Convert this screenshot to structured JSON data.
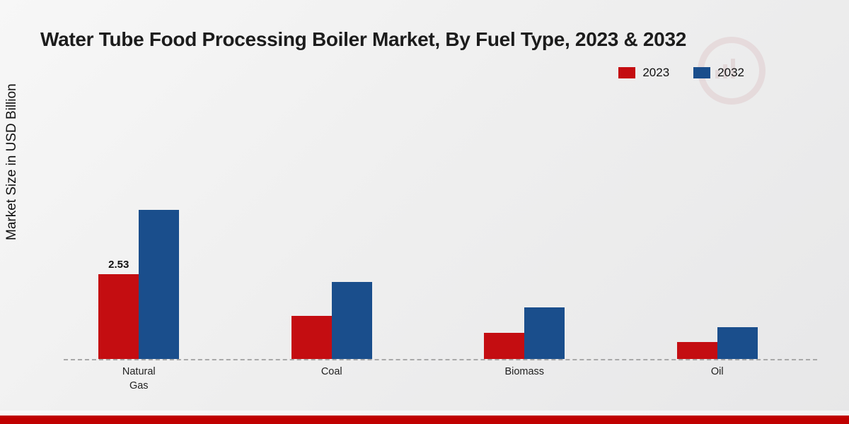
{
  "header": {
    "title": "Water Tube Food Processing Boiler Market, By Fuel Type, 2023 & 2032"
  },
  "axes": {
    "ylabel": "Market Size in USD Billion"
  },
  "legend": {
    "items": [
      {
        "label": "2023",
        "color": "#c40d11"
      },
      {
        "label": "2032",
        "color": "#1a4e8c"
      }
    ]
  },
  "chart_data": {
    "type": "bar",
    "categories": [
      "Natural Gas",
      "Coal",
      "Biomass",
      "Oil"
    ],
    "series": [
      {
        "name": "2023",
        "color": "#c40d11",
        "values": [
          2.53,
          1.28,
          0.78,
          0.5
        ]
      },
      {
        "name": "2032",
        "color": "#1a4e8c",
        "values": [
          4.45,
          2.3,
          1.55,
          0.95
        ]
      }
    ],
    "annotations": [
      {
        "series": 0,
        "category": 0,
        "text": "2.53"
      }
    ],
    "ylim": [
      0,
      5
    ],
    "grid": "off",
    "legend_position": "top-right",
    "baseline_style": "dashed"
  },
  "footer": {
    "bar_color": "#c00000"
  },
  "decor": {
    "watermark": "mrfr-logo-watermark"
  }
}
